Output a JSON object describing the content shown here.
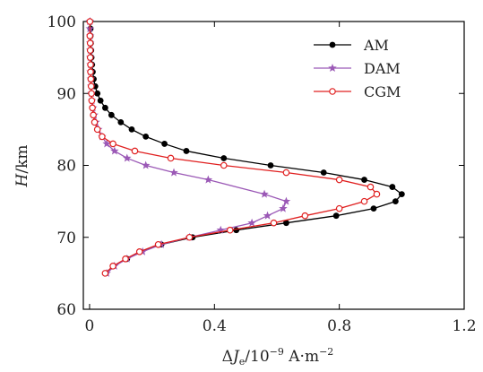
{
  "chart_data": {
    "type": "line",
    "title": "",
    "xlabel": "ΔJe/10⁻⁹ A·m⁻²",
    "xlabel_parts": {
      "delta": "Δ",
      "symbol": "J",
      "subscript": "e",
      "base": "/10",
      "exp": "−9",
      "unit": " A·m",
      "unit_exp": "−2"
    },
    "ylabel": "H/km",
    "ylabel_parts": {
      "symbol": "H",
      "unit": "/km"
    },
    "xlim": [
      -0.02,
      1.2
    ],
    "ylim": [
      60,
      100
    ],
    "xticks": [
      0,
      0.4,
      0.8,
      1.2
    ],
    "xtick_labels": [
      "0",
      "0.4",
      "0.8",
      "1.2"
    ],
    "yticks": [
      60,
      70,
      80,
      90,
      100
    ],
    "ytick_labels": [
      "60",
      "70",
      "80",
      "90",
      "100"
    ],
    "grid": false,
    "legend_position": "top-right",
    "series": [
      {
        "name": "AM",
        "color": "#000000",
        "marker": "filled-circle",
        "x": [
          0.052,
          0.075,
          0.12,
          0.16,
          0.23,
          0.33,
          0.47,
          0.63,
          0.79,
          0.91,
          0.98,
          1.0,
          0.97,
          0.88,
          0.75,
          0.58,
          0.43,
          0.31,
          0.24,
          0.18,
          0.135,
          0.1,
          0.07,
          0.05,
          0.035,
          0.025,
          0.018,
          0.013,
          0.01,
          0.008,
          0.006,
          0.005,
          0.004,
          0.003,
          0.003,
          0.002
        ],
        "y": [
          65,
          66,
          67,
          68,
          69,
          70,
          71,
          72,
          73,
          74,
          75,
          76,
          77,
          78,
          79,
          80,
          81,
          82,
          83,
          84,
          85,
          86,
          87,
          88,
          89,
          90,
          91,
          92,
          93,
          94,
          95,
          96,
          97,
          98,
          99,
          100
        ]
      },
      {
        "name": "DAM",
        "color": "#9b59b6",
        "marker": "star",
        "x": [
          0.055,
          0.08,
          0.12,
          0.17,
          0.23,
          0.32,
          0.42,
          0.52,
          0.57,
          0.62,
          0.63,
          0.56,
          0.38,
          0.27,
          0.18,
          0.12,
          0.08,
          0.055,
          0.04,
          0.028,
          0.02,
          0.015,
          0.011,
          0.008,
          0.006,
          0.005,
          0.004,
          0.003,
          0.003,
          0.002,
          0.002,
          0.002,
          0.002,
          0.001,
          0.001,
          0.001
        ],
        "y": [
          65,
          66,
          67,
          68,
          69,
          70,
          71,
          72,
          73,
          74,
          75,
          76,
          78,
          79,
          80,
          81,
          82,
          83,
          84,
          85,
          86,
          87,
          88,
          89,
          90,
          91,
          92,
          93,
          94,
          95,
          96,
          97,
          98,
          99,
          100,
          100
        ]
      },
      {
        "name": "CGM",
        "color": "#e02020",
        "marker": "open-circle",
        "x": [
          0.05,
          0.075,
          0.115,
          0.16,
          0.22,
          0.32,
          0.45,
          0.59,
          0.69,
          0.8,
          0.88,
          0.92,
          0.9,
          0.8,
          0.63,
          0.43,
          0.26,
          0.145,
          0.075,
          0.04,
          0.025,
          0.016,
          0.012,
          0.009,
          0.007,
          0.006,
          0.005,
          0.004,
          0.003,
          0.003,
          0.002,
          0.002,
          0.002,
          0.001,
          0.001
        ],
        "y": [
          65,
          66,
          67,
          68,
          69,
          70,
          71,
          72,
          73,
          74,
          75,
          76,
          77,
          78,
          79,
          80,
          81,
          82,
          83,
          84,
          85,
          86,
          87,
          88,
          89,
          90,
          91,
          92,
          93,
          94,
          95,
          96,
          97,
          98,
          100
        ]
      }
    ]
  }
}
